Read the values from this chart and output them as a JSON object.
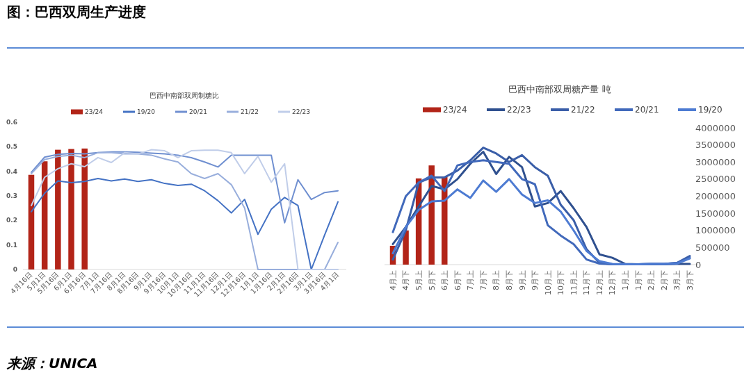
{
  "chart_data": [
    {
      "type": "line",
      "title": "巴西中南部双周制糖比",
      "annotations": [
        "图：巴西双周生产进度"
      ],
      "categories": [
        "4月16日",
        "5月1日",
        "5月16日",
        "6月1日",
        "6月16日",
        "7月1日",
        "7月16日",
        "8月1日",
        "8月16日",
        "9月1日",
        "9月16日",
        "10月1日",
        "10月16日",
        "11月1日",
        "11月16日",
        "12月1日",
        "12月16日",
        "1月1日",
        "1月16日",
        "2月1日",
        "2月16日",
        "3月1日",
        "3月16日",
        "4月1日"
      ],
      "ylim": [
        0,
        0.6
      ],
      "yticks": [
        0,
        0.1,
        0.2,
        0.3,
        0.4,
        0.5,
        0.6
      ],
      "legend": "top",
      "series": [
        {
          "name": "23/24",
          "type": "bar",
          "color": "#b22418",
          "values": [
            0.385,
            0.44,
            0.487,
            0.49,
            0.492,
            null,
            null,
            null,
            null,
            null,
            null,
            null,
            null,
            null,
            null,
            null,
            null,
            null,
            null,
            null,
            null,
            null,
            null,
            null
          ]
        },
        {
          "name": "19/20",
          "color": "#4472c4",
          "values": [
            0.235,
            0.31,
            0.36,
            0.353,
            0.358,
            0.37,
            0.36,
            0.368,
            0.358,
            0.365,
            0.35,
            0.342,
            0.347,
            0.32,
            0.28,
            0.23,
            0.285,
            0.143,
            0.245,
            0.293,
            0.26,
            0,
            0.14,
            0.275
          ]
        },
        {
          "name": "20/21",
          "color": "#6f8fd0",
          "values": [
            0.395,
            0.457,
            0.468,
            0.472,
            0.47,
            0.475,
            0.478,
            0.478,
            0.477,
            0.473,
            0.47,
            0.465,
            0.455,
            0.437,
            0.417,
            0.465,
            0.465,
            0.465,
            0.465,
            0.19,
            0.365,
            0.285,
            0.313,
            0.32
          ]
        },
        {
          "name": "21/22",
          "color": "#98aedc",
          "values": [
            0.39,
            0.447,
            0.46,
            0.465,
            0.455,
            0.475,
            0.475,
            0.47,
            0.47,
            0.465,
            0.45,
            0.437,
            0.39,
            0.37,
            0.39,
            0.345,
            0.25,
            0,
            0,
            0,
            0,
            0,
            0,
            0.11
          ]
        },
        {
          "name": "22/23",
          "color": "#c0cde9",
          "values": [
            0.26,
            0.375,
            0.41,
            0.43,
            0.418,
            0.455,
            0.435,
            0.475,
            0.47,
            0.487,
            0.483,
            0.455,
            0.483,
            0.485,
            0.485,
            0.475,
            0.39,
            0.46,
            0.355,
            0.43,
            0,
            0,
            0,
            0
          ]
        }
      ]
    },
    {
      "type": "line",
      "title": "巴西中南部双周糖产量 吨",
      "annotations": [
        "来源：UNICA"
      ],
      "categories": [
        "4月上",
        "4月下",
        "5月上",
        "5月下",
        "6月上",
        "6月下",
        "7月上",
        "7月下",
        "8月上",
        "8月下",
        "9月上",
        "9月下",
        "10月上",
        "10月下",
        "11月上",
        "11月下",
        "12月上",
        "12月下",
        "1月上",
        "1月下",
        "2月上",
        "2月下",
        "3月上",
        "3月下"
      ],
      "y2lim": [
        0,
        4000000
      ],
      "y2ticks": [
        0,
        500000,
        1000000,
        1500000,
        2000000,
        2500000,
        3000000,
        3500000,
        4000000
      ],
      "legend": "top",
      "series": [
        {
          "name": "23/24",
          "type": "bar",
          "axis": "y2",
          "color": "#b22418",
          "values": [
            550000,
            1000000,
            2520000,
            2900000,
            2560000,
            null,
            null,
            null,
            null,
            null,
            null,
            null,
            null,
            null,
            null,
            null,
            null,
            null,
            null,
            null,
            null,
            null,
            null,
            null
          ]
        },
        {
          "name": "22/23",
          "axis": "y2",
          "color": "#2f508f",
          "values": [
            600000,
            1100000,
            1700000,
            2300000,
            2200000,
            2500000,
            2950000,
            3300000,
            2650000,
            3150000,
            2850000,
            1700000,
            1800000,
            2150000,
            1650000,
            1100000,
            300000,
            200000,
            20000,
            10000,
            10000,
            10000,
            20000,
            20000
          ]
        },
        {
          "name": "21/22",
          "axis": "y2",
          "color": "#3a5ea8",
          "values": [
            150000,
            1000000,
            2400000,
            2550000,
            2550000,
            2750000,
            3050000,
            3420000,
            3250000,
            3000000,
            3200000,
            2850000,
            2600000,
            1750000,
            1300000,
            450000,
            50000,
            10000,
            10000,
            10000,
            20000,
            20000,
            50000,
            250000
          ]
        },
        {
          "name": "20/21",
          "axis": "y2",
          "color": "#4169bb",
          "values": [
            950000,
            2000000,
            2400000,
            2600000,
            2150000,
            2900000,
            3000000,
            3050000,
            3000000,
            2950000,
            2500000,
            2350000,
            1150000,
            850000,
            600000,
            150000,
            30000,
            10000,
            10000,
            10000,
            20000,
            20000,
            50000,
            200000
          ]
        },
        {
          "name": "19/20",
          "axis": "y2",
          "color": "#4d7bd2",
          "values": [
            330000,
            1100000,
            1600000,
            1850000,
            1870000,
            2200000,
            1950000,
            2460000,
            2130000,
            2500000,
            2050000,
            1800000,
            1880000,
            1550000,
            1000000,
            400000,
            100000,
            20000,
            10000,
            10000,
            20000,
            20000,
            30000,
            180000
          ]
        }
      ]
    }
  ]
}
